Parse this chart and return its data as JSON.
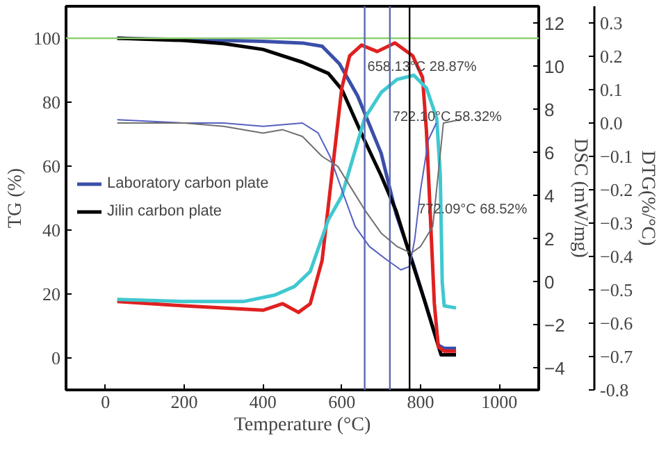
{
  "chart_data": {
    "type": "line",
    "xlabel": "Temperature (°C)",
    "ylabel": "TG (%)",
    "y2label": "DSC (mW/mg)",
    "y3label": "DTG(%/°C)",
    "xlim": [
      -100,
      1100
    ],
    "xticks": [
      0,
      200,
      400,
      600,
      800,
      1000
    ],
    "ylim": [
      -10,
      110
    ],
    "yticks": [
      0,
      20,
      40,
      60,
      80,
      100
    ],
    "y2lim": [
      -5,
      12.8
    ],
    "y2ticks": [
      -4,
      -2,
      0,
      2,
      4,
      6,
      8,
      10,
      12
    ],
    "y3lim": [
      -0.8,
      0.35
    ],
    "y3ticks": [
      {
        "value": -0.8,
        "label": "-0.8"
      },
      -0.7,
      -0.6,
      -0.5,
      -0.4,
      -0.3,
      -0.2,
      -0.1,
      {
        "value": 0,
        "label": "0.0"
      },
      0.1,
      0.2,
      0.3
    ],
    "grid": false,
    "legend": "left",
    "series": [
      {
        "name": "Laboratory carbon plate",
        "color": "#3a4fa8",
        "axis": "y",
        "x": [
          30,
          200,
          400,
          500,
          550,
          594,
          640,
          700,
          738,
          780,
          820,
          845,
          860,
          890
        ],
        "values": [
          100,
          99.6,
          99,
          98.5,
          97.5,
          92,
          82,
          64,
          45,
          30,
          14,
          4,
          3,
          3
        ]
      },
      {
        "name": "Jilin carbon plate",
        "color": "#000000",
        "axis": "y",
        "x": [
          30,
          200,
          300,
          400,
          500,
          566,
          600,
          658,
          700,
          738,
          776,
          810,
          852,
          890
        ],
        "values": [
          100,
          99.3,
          98.3,
          96.5,
          92.5,
          89,
          84,
          68,
          57,
          46,
          31,
          18,
          1,
          1
        ]
      },
      {
        "color": "#e02020",
        "axis": "y2",
        "x": [
          30,
          200,
          400,
          450,
          490,
          520,
          550,
          575,
          600,
          620,
          650,
          690,
          735,
          780,
          805,
          815,
          825,
          835,
          845,
          860,
          890
        ],
        "values": [
          -0.9,
          -1.1,
          -1.3,
          -1.0,
          -1.4,
          -1.0,
          1.0,
          5.0,
          9.0,
          10.5,
          11.0,
          10.7,
          11.1,
          10.5,
          9.5,
          7.0,
          3.0,
          -1.0,
          -3.0,
          -3.2,
          -3.2
        ]
      },
      {
        "color": "#40c8d0",
        "axis": "y2",
        "x": [
          30,
          200,
          350,
          430,
          480,
          520,
          566,
          600,
          658,
          700,
          740,
          783,
          815,
          841,
          850,
          855,
          860,
          890
        ],
        "values": [
          -0.8,
          -0.9,
          -0.9,
          -0.6,
          -0.2,
          0.5,
          2.9,
          4.0,
          7.6,
          8.8,
          9.4,
          9.6,
          9.0,
          7.6,
          5,
          0,
          -1.1,
          -1.2
        ]
      },
      {
        "color": "#5560c0",
        "axis": "y3",
        "x": [
          30,
          200,
          300,
          400,
          500,
          540,
          570,
          600,
          634,
          670,
          714,
          750,
          772,
          785,
          800,
          820,
          840
        ],
        "values": [
          0.01,
          0.0,
          0.0,
          -0.01,
          0.0,
          -0.03,
          -0.1,
          -0.2,
          -0.31,
          -0.37,
          -0.41,
          -0.44,
          -0.43,
          -0.35,
          -0.2,
          -0.05,
          0.0
        ]
      },
      {
        "color": "#707070",
        "axis": "y3",
        "x": [
          30,
          200,
          300,
          400,
          450,
          500,
          550,
          590,
          658,
          700,
          740,
          776,
          800,
          831,
          845,
          858,
          900
        ],
        "values": [
          0.0,
          0.0,
          -0.01,
          -0.03,
          -0.02,
          -0.04,
          -0.1,
          -0.13,
          -0.26,
          -0.33,
          -0.37,
          -0.39,
          -0.37,
          -0.31,
          -0.15,
          0.0,
          0.01
        ]
      }
    ],
    "ref_lines": [
      {
        "axis": "y",
        "value": 100,
        "color": "#90d070"
      },
      {
        "axis": "x",
        "value": 658.13,
        "label": "658.13°C 28.87%",
        "color": "#5a6ab0"
      },
      {
        "axis": "x",
        "value": 722.1,
        "label": "722.10°C 58.32%",
        "color": "#5a6ab0"
      },
      {
        "axis": "x",
        "value": 772.09,
        "label": "772.09°C 68.52%",
        "color": "#000000"
      }
    ]
  }
}
